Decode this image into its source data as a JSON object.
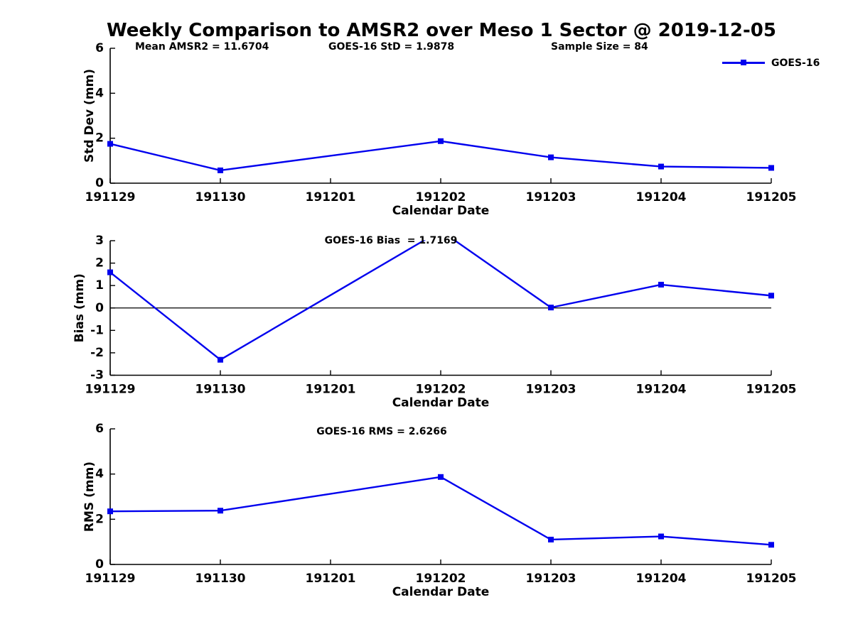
{
  "title": "Weekly Comparison to AMSR2 over Meso 1 Sector @ 2019-12-05",
  "annotations": {
    "mean_amsr2": "Mean AMSR2 = 11.6704",
    "goes16_std": "GOES-16 StD = 1.9878",
    "sample_size": "Sample Size = 84"
  },
  "legend": {
    "series_label": "GOES-16",
    "color": "#0000EE"
  },
  "colors": {
    "line": "#0000EE",
    "axis": "#000000",
    "background": "#ffffff"
  },
  "chart_data": [
    {
      "type": "line",
      "name": "std-dev",
      "categories": [
        "191129",
        "191130",
        "191201",
        "191202",
        "191203",
        "191204",
        "191205"
      ],
      "series": [
        {
          "name": "GOES-16",
          "values": [
            1.75,
            0.57,
            null,
            1.87,
            1.15,
            0.74,
            0.68
          ]
        }
      ],
      "xlabel": "Calendar Date",
      "ylabel": "Std Dev (mm)",
      "ylim": [
        0,
        6
      ],
      "yticks": [
        0,
        2,
        4,
        6
      ],
      "annotation": "",
      "zero_line": false,
      "grid": false,
      "legend_position": "top-right-outside",
      "marker": "square"
    },
    {
      "type": "line",
      "name": "bias",
      "categories": [
        "191129",
        "191130",
        "191201",
        "191202",
        "191203",
        "191204",
        "191205"
      ],
      "series": [
        {
          "name": "GOES-16",
          "values": [
            1.59,
            -2.31,
            null,
            3.45,
            0.02,
            1.04,
            0.55
          ]
        }
      ],
      "xlabel": "Calendar Date",
      "ylabel": "Bias (mm)",
      "ylim": [
        -3,
        3
      ],
      "yticks": [
        -3,
        -2,
        -1,
        0,
        1,
        2,
        3
      ],
      "annotation": "GOES-16 Bias  = 1.7169",
      "zero_line": true,
      "grid": false,
      "note": "peak at 191202 exceeds ylim and is clipped at y=3",
      "marker": "square"
    },
    {
      "type": "line",
      "name": "rms",
      "categories": [
        "191129",
        "191130",
        "191201",
        "191202",
        "191203",
        "191204",
        "191205"
      ],
      "series": [
        {
          "name": "GOES-16",
          "values": [
            2.35,
            2.38,
            null,
            3.87,
            1.1,
            1.24,
            0.87
          ]
        }
      ],
      "xlabel": "Calendar Date",
      "ylabel": "RMS (mm)",
      "ylim": [
        0,
        6
      ],
      "yticks": [
        0,
        2,
        4,
        6
      ],
      "annotation": "GOES-16 RMS = 2.6266",
      "zero_line": false,
      "grid": false,
      "marker": "square"
    }
  ]
}
